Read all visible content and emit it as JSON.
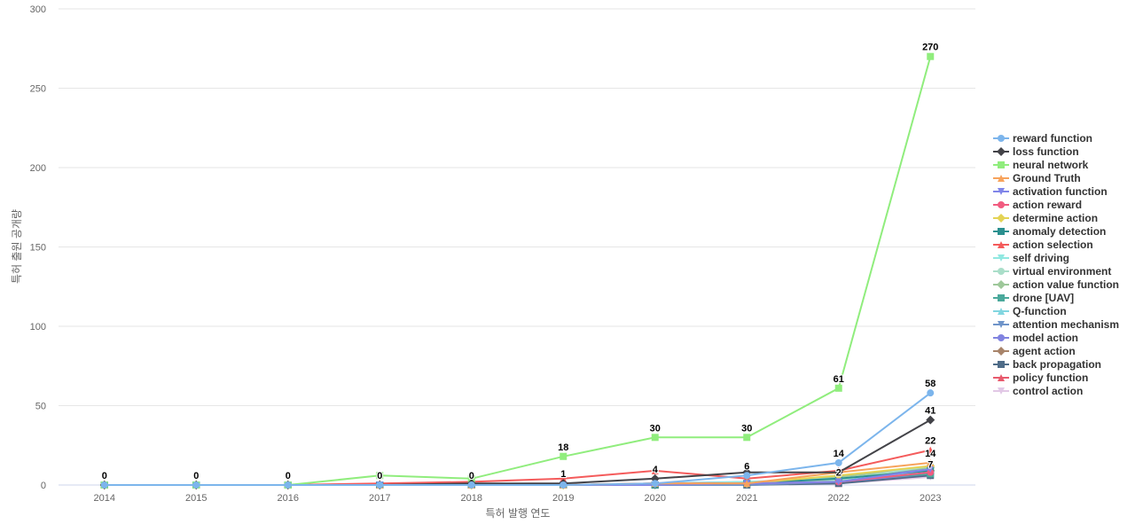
{
  "chart_data": {
    "type": "line",
    "title": "",
    "xlabel": "특허 발행 연도",
    "ylabel": "특허 출원 공개량",
    "x": [
      "2014",
      "2015",
      "2016",
      "2017",
      "2018",
      "2019",
      "2020",
      "2021",
      "2022",
      "2023"
    ],
    "ylim": [
      0,
      300
    ],
    "yticks": [
      0,
      50,
      100,
      150,
      200,
      250,
      300
    ],
    "grid": true,
    "legend_position": "right",
    "series": [
      {
        "name": "reward function",
        "color": "#7cb5ec",
        "marker": "circle",
        "values": [
          0,
          0,
          0,
          0,
          0,
          0,
          1,
          6,
          14,
          58
        ]
      },
      {
        "name": "loss function",
        "color": "#434348",
        "marker": "diamond",
        "values": [
          0,
          0,
          0,
          0,
          1,
          1,
          4,
          8,
          8,
          41
        ]
      },
      {
        "name": "neural network",
        "color": "#90ed7d",
        "marker": "square",
        "values": [
          0,
          0,
          0,
          6,
          4,
          18,
          30,
          30,
          61,
          270
        ]
      },
      {
        "name": "Ground Truth",
        "color": "#f7a35c",
        "marker": "triangle",
        "values": [
          0,
          0,
          0,
          0,
          0,
          0,
          1,
          1,
          8,
          14
        ]
      },
      {
        "name": "activation function",
        "color": "#8085e9",
        "marker": "triangle-down",
        "values": [
          0,
          0,
          0,
          0,
          0,
          0,
          0,
          1,
          2,
          10
        ]
      },
      {
        "name": "action reward",
        "color": "#f15c80",
        "marker": "circle",
        "values": [
          0,
          0,
          0,
          0,
          0,
          0,
          1,
          1,
          2,
          8
        ]
      },
      {
        "name": "determine action",
        "color": "#e4d354",
        "marker": "diamond",
        "values": [
          0,
          0,
          0,
          0,
          0,
          0,
          1,
          1,
          6,
          12
        ]
      },
      {
        "name": "anomaly detection",
        "color": "#2b908f",
        "marker": "square",
        "values": [
          0,
          0,
          0,
          0,
          0,
          0,
          0,
          1,
          4,
          9
        ]
      },
      {
        "name": "action selection",
        "color": "#f45b5b",
        "marker": "triangle",
        "values": [
          0,
          0,
          0,
          1,
          2,
          4,
          9,
          4,
          9,
          22
        ]
      },
      {
        "name": "self driving",
        "color": "#91e8e1",
        "marker": "triangle-down",
        "values": [
          0,
          0,
          0,
          0,
          0,
          0,
          0,
          2,
          4,
          8
        ]
      },
      {
        "name": "virtual environment",
        "color": "#aadec9",
        "marker": "circle",
        "values": [
          0,
          0,
          0,
          0,
          0,
          0,
          0,
          2,
          3,
          12
        ]
      },
      {
        "name": "action value function",
        "color": "#9ec89a",
        "marker": "diamond",
        "values": [
          0,
          0,
          0,
          0,
          0,
          0,
          0,
          1,
          5,
          11
        ]
      },
      {
        "name": "drone [UAV]",
        "color": "#4aa99b",
        "marker": "square",
        "values": [
          0,
          0,
          0,
          0,
          0,
          0,
          0,
          1,
          3,
          7
        ]
      },
      {
        "name": "Q-function",
        "color": "#82d6e0",
        "marker": "triangle",
        "values": [
          0,
          0,
          0,
          0,
          1,
          0,
          1,
          2,
          3,
          9
        ]
      },
      {
        "name": "attention mechanism",
        "color": "#6f94c9",
        "marker": "triangle-down",
        "values": [
          0,
          0,
          0,
          0,
          0,
          0,
          0,
          0,
          2,
          11
        ]
      },
      {
        "name": "model action",
        "color": "#8183e0",
        "marker": "circle",
        "values": [
          0,
          0,
          0,
          0,
          0,
          0,
          1,
          1,
          2,
          7
        ]
      },
      {
        "name": "agent action",
        "color": "#a8846a",
        "marker": "diamond",
        "values": [
          0,
          0,
          0,
          0,
          0,
          0,
          0,
          1,
          3,
          9
        ]
      },
      {
        "name": "back propagation",
        "color": "#4f6c88",
        "marker": "square",
        "values": [
          0,
          0,
          0,
          0,
          0,
          0,
          0,
          0,
          1,
          6
        ]
      },
      {
        "name": "policy function",
        "color": "#e85a6d",
        "marker": "triangle",
        "values": [
          0,
          0,
          0,
          0,
          0,
          0,
          0,
          1,
          1,
          7
        ]
      },
      {
        "name": "control action",
        "color": "#e2c8e6",
        "marker": "triangle-down",
        "values": [
          0,
          0,
          0,
          0,
          0,
          0,
          0,
          0,
          1,
          5
        ]
      }
    ],
    "data_labels": [
      {
        "x": "2014",
        "text": "0"
      },
      {
        "x": "2015",
        "text": "0"
      },
      {
        "x": "2016",
        "text": "0"
      },
      {
        "x": "2017",
        "text": "0"
      },
      {
        "x": "2018",
        "text": "0"
      },
      {
        "x": "2019",
        "text": "18",
        "value": 18
      },
      {
        "x": "2019",
        "text": "1",
        "value": 1
      },
      {
        "x": "2020",
        "text": "30",
        "value": 30
      },
      {
        "x": "2020",
        "text": "4",
        "value": 4
      },
      {
        "x": "2021",
        "text": "30",
        "value": 30
      },
      {
        "x": "2021",
        "text": "6",
        "value": 6
      },
      {
        "x": "2022",
        "text": "61",
        "value": 61
      },
      {
        "x": "2022",
        "text": "14",
        "value": 14
      },
      {
        "x": "2022",
        "text": "2",
        "value": 2
      },
      {
        "x": "2023",
        "text": "270",
        "value": 270
      },
      {
        "x": "2023",
        "text": "58",
        "value": 58
      },
      {
        "x": "2023",
        "text": "41",
        "value": 41
      },
      {
        "x": "2023",
        "text": "22",
        "value": 22
      },
      {
        "x": "2023",
        "text": "14",
        "value": 14
      },
      {
        "x": "2023",
        "text": "7",
        "value": 7
      }
    ]
  }
}
